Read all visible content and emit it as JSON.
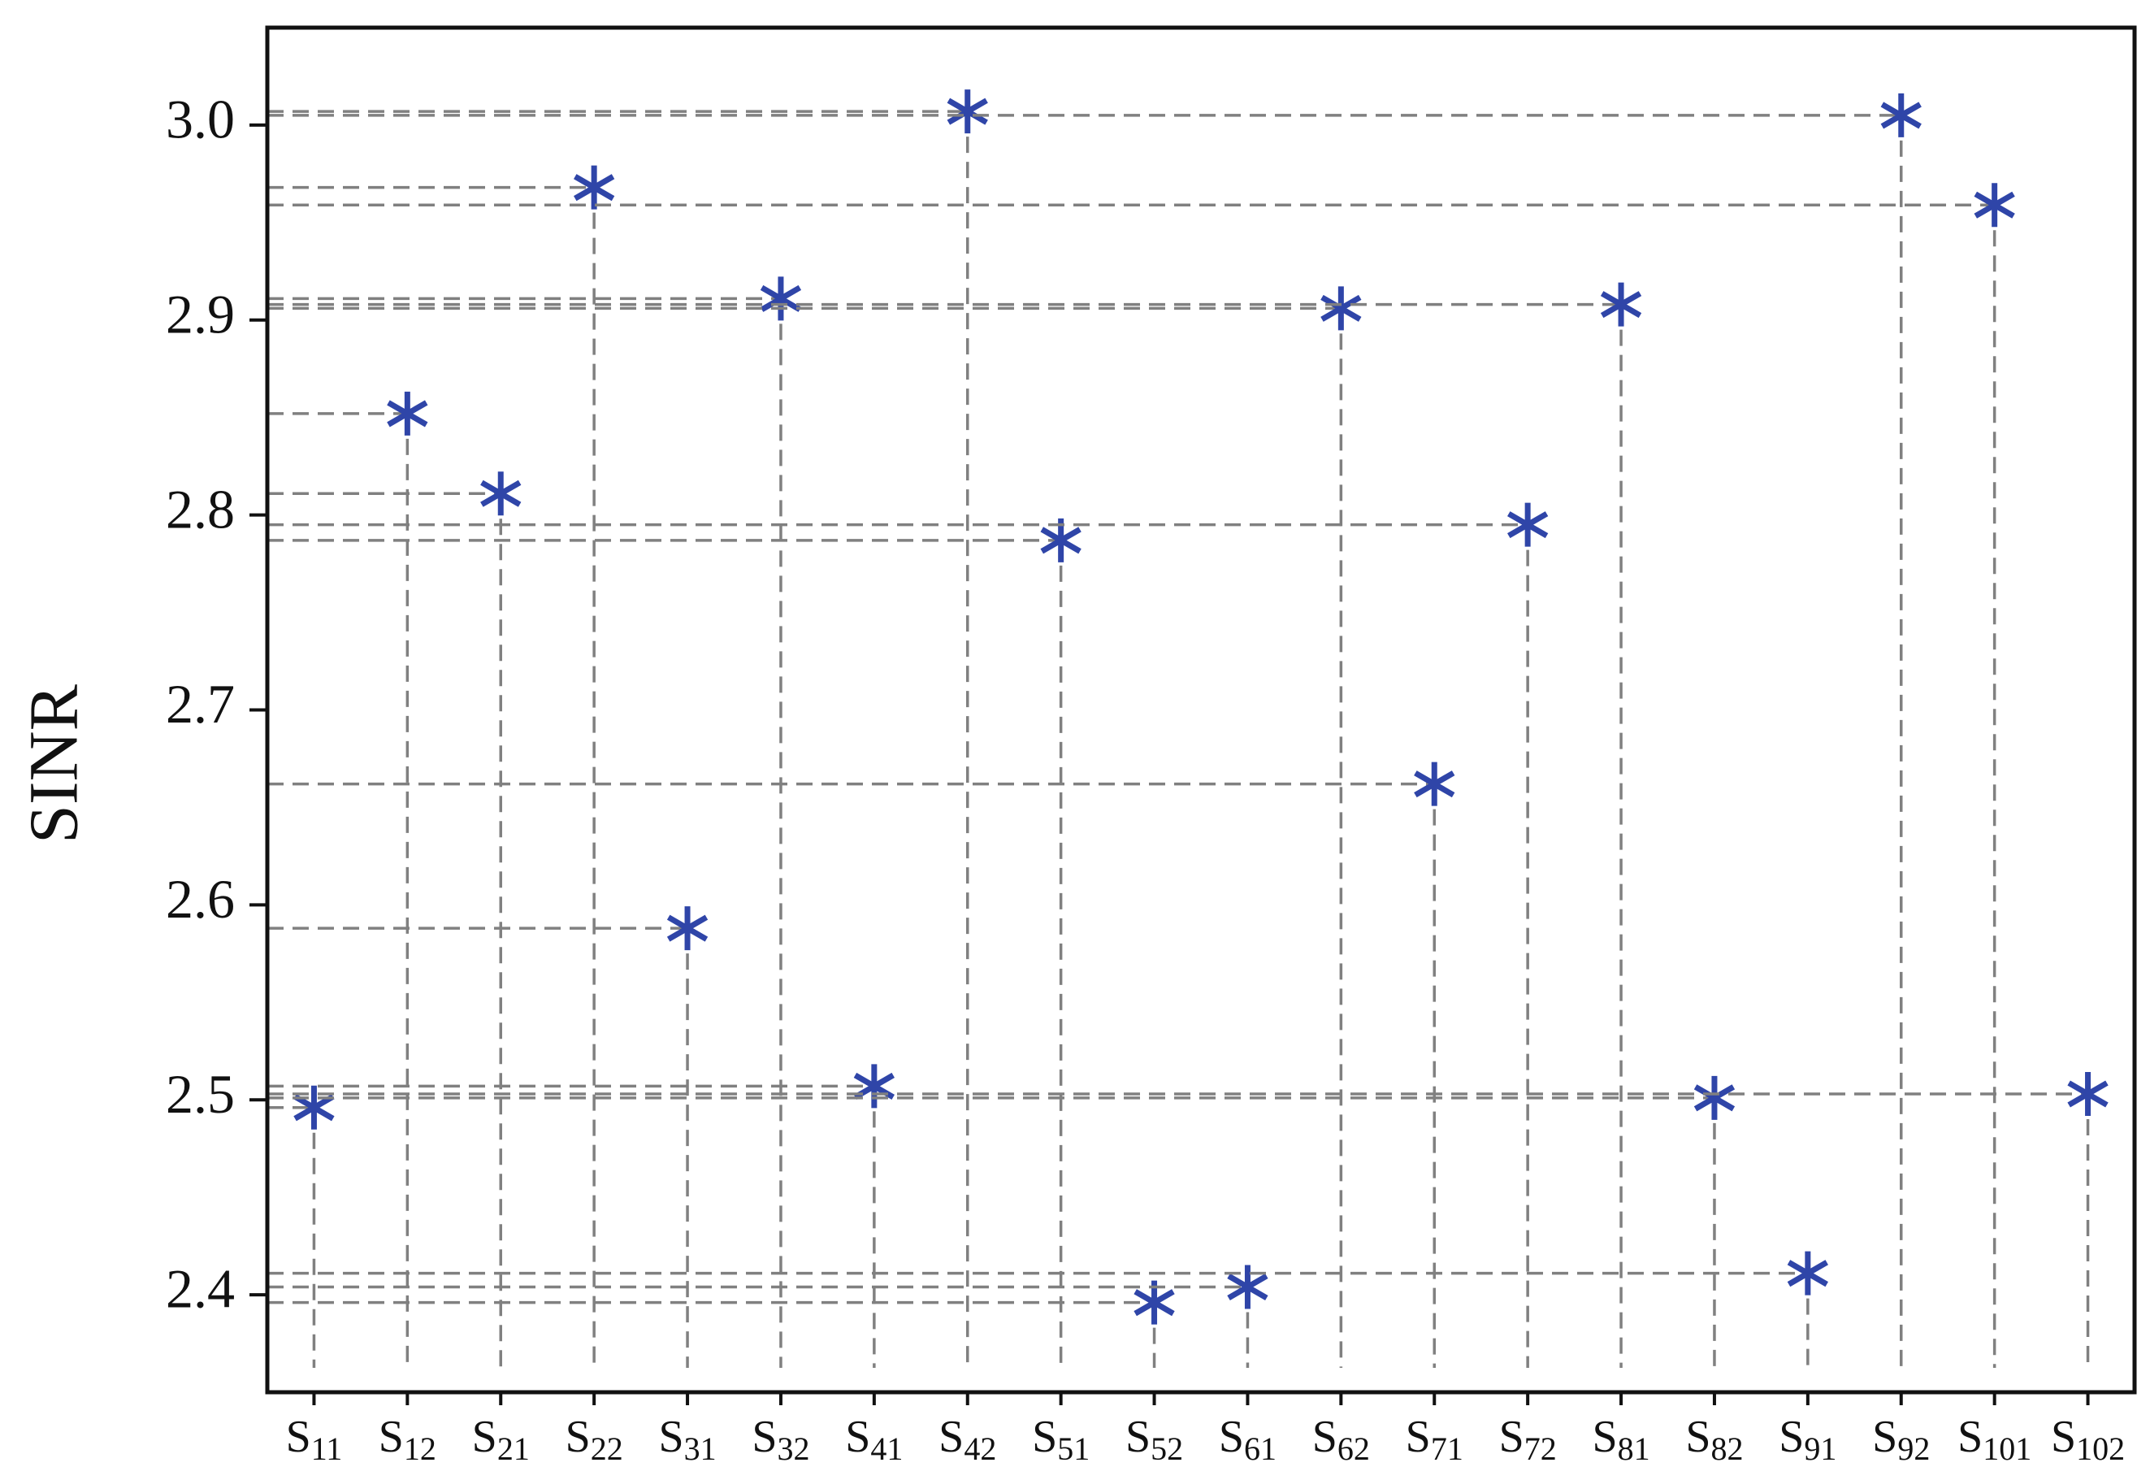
{
  "chart_data": {
    "type": "scatter",
    "y_label": "SINR",
    "categories": [
      "S11",
      "S12",
      "S21",
      "S22",
      "S31",
      "S32",
      "S41",
      "S42",
      "S51",
      "S52",
      "S61",
      "S62",
      "S71",
      "S72",
      "S81",
      "S82",
      "S91",
      "S92",
      "S101",
      "S102"
    ],
    "values": [
      2.496,
      2.852,
      2.811,
      2.968,
      2.588,
      2.911,
      2.507,
      3.007,
      2.787,
      2.396,
      2.404,
      2.906,
      2.662,
      2.795,
      2.908,
      2.501,
      2.411,
      3.005,
      2.959,
      2.503
    ],
    "color": "#2f45a8",
    "guide_color": "#808080",
    "ylim": [
      2.35,
      3.05
    ],
    "yticks": [
      2.4,
      2.5,
      2.6,
      2.7,
      2.8,
      2.9,
      {
        "value": 3,
        "label": "3.0"
      }
    ]
  }
}
